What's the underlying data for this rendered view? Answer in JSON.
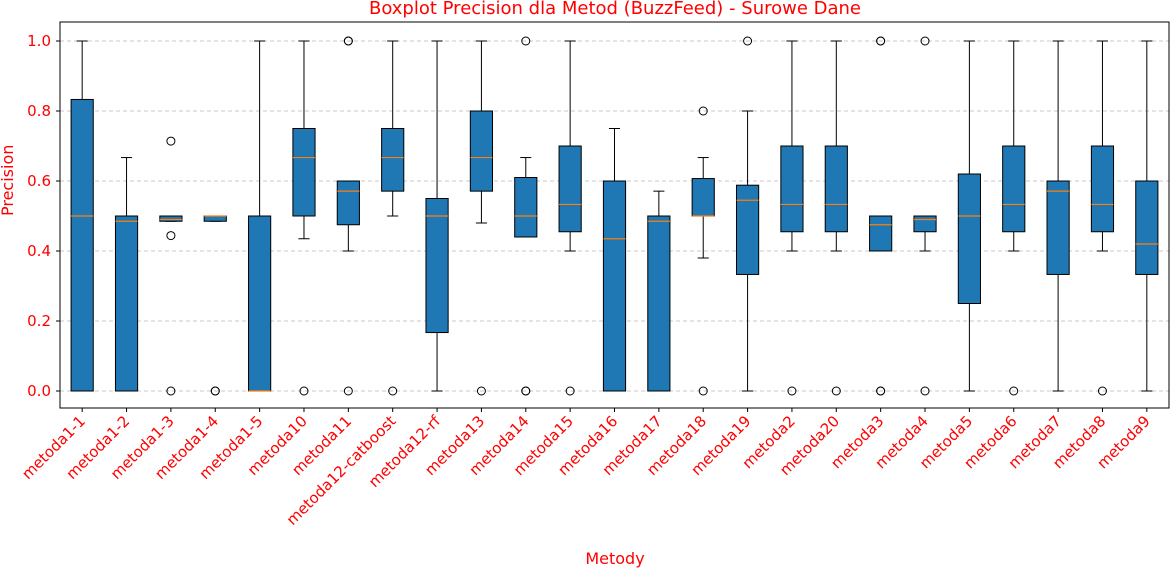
{
  "chart_data": {
    "type": "boxplot",
    "title": "Boxplot Precision dla Metod (BuzzFeed) - Surowe Dane",
    "xlabel": "Metody",
    "ylabel": "Precision",
    "ylim": [
      -0.05,
      1.05
    ],
    "yticks": [
      0.0,
      0.2,
      0.4,
      0.6,
      0.8,
      1.0
    ],
    "ytick_labels": [
      "0.0",
      "0.2",
      "0.4",
      "0.6",
      "0.8",
      "1.0"
    ],
    "grid": "y-dashed",
    "colors": {
      "box": "#1f77b4",
      "median": "#ff7f0e",
      "text": "#ff0000",
      "grid": "#c8c8c8"
    },
    "categories": [
      "metoda1-1",
      "metoda1-2",
      "metoda1-3",
      "metoda1-4",
      "metoda1-5",
      "metoda10",
      "metoda11",
      "metoda12-catboost",
      "metoda12-rf",
      "metoda13",
      "metoda14",
      "metoda15",
      "metoda16",
      "metoda17",
      "metoda18",
      "metoda19",
      "metoda2",
      "metoda20",
      "metoda3",
      "metoda4",
      "metoda5",
      "metoda6",
      "metoda7",
      "metoda8",
      "metoda9"
    ],
    "boxes": [
      {
        "whislo": 0.0,
        "q1": 0.0,
        "med": 0.5,
        "q3": 0.833,
        "whishi": 1.0,
        "fliers": []
      },
      {
        "whislo": 0.0,
        "q1": 0.0,
        "med": 0.485,
        "q3": 0.5,
        "whishi": 0.667,
        "fliers": []
      },
      {
        "whislo": 0.485,
        "q1": 0.485,
        "med": 0.49,
        "q3": 0.5,
        "whishi": 0.5,
        "fliers": [
          0.714,
          0.444,
          0.0
        ]
      },
      {
        "whislo": 0.485,
        "q1": 0.485,
        "med": 0.5,
        "q3": 0.5,
        "whishi": 0.5,
        "fliers": [
          0.0,
          0.0
        ]
      },
      {
        "whislo": 0.0,
        "q1": 0.0,
        "med": 0.0,
        "q3": 0.5,
        "whishi": 1.0,
        "fliers": []
      },
      {
        "whislo": 0.435,
        "q1": 0.5,
        "med": 0.667,
        "q3": 0.75,
        "whishi": 1.0,
        "fliers": [
          0.0
        ]
      },
      {
        "whislo": 0.4,
        "q1": 0.475,
        "med": 0.571,
        "q3": 0.6,
        "whishi": 0.6,
        "fliers": [
          1.0,
          1.0,
          0.0
        ]
      },
      {
        "whislo": 0.5,
        "q1": 0.571,
        "med": 0.667,
        "q3": 0.75,
        "whishi": 1.0,
        "fliers": [
          0.0
        ]
      },
      {
        "whislo": 0.0,
        "q1": 0.167,
        "med": 0.5,
        "q3": 0.55,
        "whishi": 1.0,
        "fliers": []
      },
      {
        "whislo": 0.48,
        "q1": 0.571,
        "med": 0.667,
        "q3": 0.8,
        "whishi": 1.0,
        "fliers": [
          0.0
        ]
      },
      {
        "whislo": 0.44,
        "q1": 0.44,
        "med": 0.5,
        "q3": 0.61,
        "whishi": 0.667,
        "fliers": [
          1.0,
          0.0,
          0.0
        ]
      },
      {
        "whislo": 0.4,
        "q1": 0.455,
        "med": 0.533,
        "q3": 0.7,
        "whishi": 1.0,
        "fliers": [
          0.0
        ]
      },
      {
        "whislo": 0.0,
        "q1": 0.0,
        "med": 0.435,
        "q3": 0.6,
        "whishi": 0.75,
        "fliers": []
      },
      {
        "whislo": 0.0,
        "q1": 0.0,
        "med": 0.485,
        "q3": 0.5,
        "whishi": 0.571,
        "fliers": []
      },
      {
        "whislo": 0.38,
        "q1": 0.5,
        "med": 0.5,
        "q3": 0.607,
        "whishi": 0.667,
        "fliers": [
          0.8,
          0.0
        ]
      },
      {
        "whislo": 0.0,
        "q1": 0.333,
        "med": 0.545,
        "q3": 0.588,
        "whishi": 0.8,
        "fliers": [
          1.0
        ]
      },
      {
        "whislo": 0.4,
        "q1": 0.455,
        "med": 0.533,
        "q3": 0.7,
        "whishi": 1.0,
        "fliers": [
          0.0
        ]
      },
      {
        "whislo": 0.4,
        "q1": 0.455,
        "med": 0.533,
        "q3": 0.7,
        "whishi": 1.0,
        "fliers": [
          0.0
        ]
      },
      {
        "whislo": 0.4,
        "q1": 0.4,
        "med": 0.475,
        "q3": 0.5,
        "whishi": 0.5,
        "fliers": [
          1.0,
          1.0,
          0.0,
          0.0
        ]
      },
      {
        "whislo": 0.4,
        "q1": 0.455,
        "med": 0.49,
        "q3": 0.5,
        "whishi": 0.5,
        "fliers": [
          1.0,
          0.0
        ]
      },
      {
        "whislo": 0.0,
        "q1": 0.25,
        "med": 0.5,
        "q3": 0.62,
        "whishi": 1.0,
        "fliers": []
      },
      {
        "whislo": 0.4,
        "q1": 0.455,
        "med": 0.533,
        "q3": 0.7,
        "whishi": 1.0,
        "fliers": [
          0.0
        ]
      },
      {
        "whislo": 0.0,
        "q1": 0.333,
        "med": 0.571,
        "q3": 0.6,
        "whishi": 1.0,
        "fliers": []
      },
      {
        "whislo": 0.4,
        "q1": 0.455,
        "med": 0.533,
        "q3": 0.7,
        "whishi": 1.0,
        "fliers": [
          0.0
        ]
      },
      {
        "whislo": 0.0,
        "q1": 0.333,
        "med": 0.42,
        "q3": 0.6,
        "whishi": 1.0,
        "fliers": []
      }
    ]
  }
}
